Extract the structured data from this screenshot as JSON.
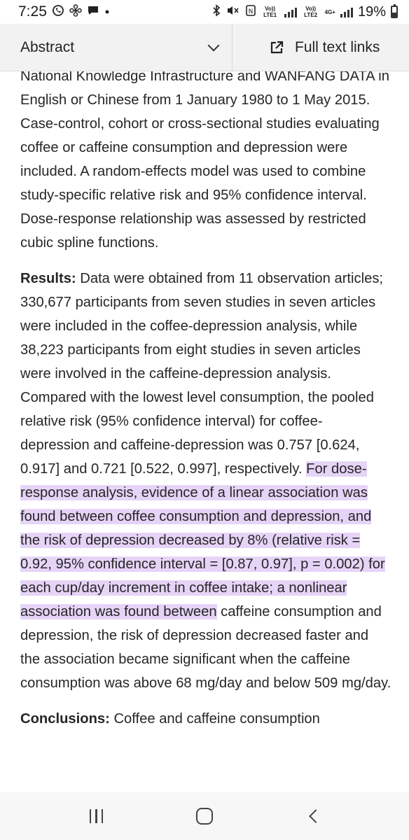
{
  "status_bar": {
    "time": "7:25",
    "icons": [
      "whatsapp-icon",
      "pinwheel-icon",
      "message-icon",
      "dot-icon"
    ],
    "right_icons": [
      "bluetooth-icon",
      "mute-icon",
      "nfc-icon"
    ],
    "volte1": "Vo)) LTE1",
    "volte2": "Vo)) LTE2",
    "net": "4G+",
    "battery_percent": "19%"
  },
  "toolbar": {
    "abstract_label": "Abstract",
    "full_text_label": "Full text links"
  },
  "content": {
    "para1": "National Knowledge Infrastructure and WANFANG DATA in English or Chinese from 1 January 1980 to 1 May 2015. Case-control, cohort or cross-sectional studies evaluating coffee or caffeine consumption and depression were included. A random-effects model was used to combine study-specific relative risk and 95% confidence interval. Dose-response relationship was assessed by restricted cubic spline functions.",
    "results_label": "Results:",
    "results_plain": " Data were obtained from 11 observation articles; 330,677 participants from seven studies in seven articles were included in the coffee-depression analysis, while 38,223 participants from eight studies in seven articles were involved in the caffeine-depression analysis. Compared with the lowest level consumption, the pooled relative risk (95% confidence interval) for coffee-depression and caffeine-depression was 0.757 [0.624, 0.917] and 0.721 [0.522, 0.997], respectively. ",
    "results_highlight": "For dose-response analysis, evidence of a linear association was found between coffee consumption and depression, and the risk of depression decreased by 8% (relative risk = 0.92, 95% confidence interval = [0.87, 0.97], p = 0.002) for each cup/day increment in coffee intake; a nonlinear association was found between",
    "results_tail": " caffeine consumption and depression, the risk of depression decreased faster and the association became significant when the caffeine consumption was above 68 mg/day and below 509 mg/day.",
    "conclusions_label": "Conclusions:",
    "conclusions_text": " Coffee and caffeine consumption"
  },
  "colors": {
    "highlight": "#e6d4f7",
    "toolbar_bg": "#f2f2f2",
    "text": "#262626"
  },
  "navbar": {
    "icons": [
      "recents-icon",
      "home-icon",
      "back-icon"
    ]
  }
}
